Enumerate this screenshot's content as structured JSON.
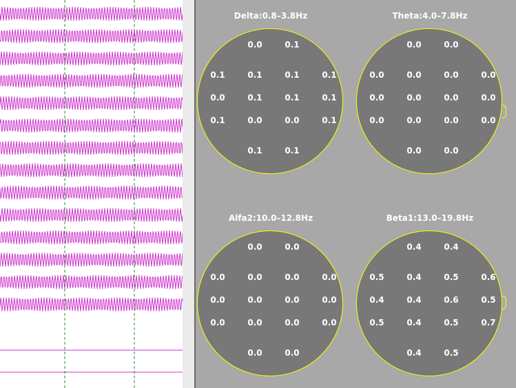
{
  "eeg": {
    "trace_color": "#cc33cc",
    "marker_color": "#2a8a2a",
    "channel_count": 14,
    "flat_channel_count": 2
  },
  "maps": [
    {
      "title": "Delta:0.8–3.8Hz",
      "rows": [
        [
          "0.0",
          "0.1"
        ],
        [
          "0.1",
          "0.1",
          "0.1",
          "0.1"
        ],
        [
          "0.0",
          "0.1",
          "0.1",
          "0.1"
        ],
        [
          "0.1",
          "0.0",
          "0.0",
          "0.1"
        ],
        [
          "0.1",
          "0.1"
        ]
      ]
    },
    {
      "title": "Theta:4.0–7.8Hz",
      "rows": [
        [
          "0.0",
          "0.0"
        ],
        [
          "0.0",
          "0.0",
          "0.0",
          "0.0"
        ],
        [
          "0.0",
          "0.0",
          "0.0",
          "0.0"
        ],
        [
          "0.0",
          "0.0",
          "0.0",
          "0.0"
        ],
        [
          "0.0",
          "0.0"
        ]
      ]
    },
    {
      "title": "Alfa2:10.0–12.8Hz",
      "rows": [
        [
          "0.0",
          "0.0"
        ],
        [
          "0.0",
          "0.0",
          "0.0",
          "0.0"
        ],
        [
          "0.0",
          "0.0",
          "0.0",
          "0.0"
        ],
        [
          "0.0",
          "0.0",
          "0.0",
          "0.0"
        ],
        [
          "0.0",
          "0.0"
        ]
      ]
    },
    {
      "title": "Beta1:13.0–19.8Hz",
      "rows": [
        [
          "0.4",
          "0.4"
        ],
        [
          "0.5",
          "0.4",
          "0.5",
          "0.6"
        ],
        [
          "0.4",
          "0.4",
          "0.6",
          "0.5"
        ],
        [
          "0.5",
          "0.4",
          "0.5",
          "0.7"
        ],
        [
          "0.4",
          "0.5"
        ]
      ]
    }
  ],
  "colors": {
    "head_fill": "#787878",
    "head_outline": "#ffff00",
    "background": "#a8a8a8"
  }
}
